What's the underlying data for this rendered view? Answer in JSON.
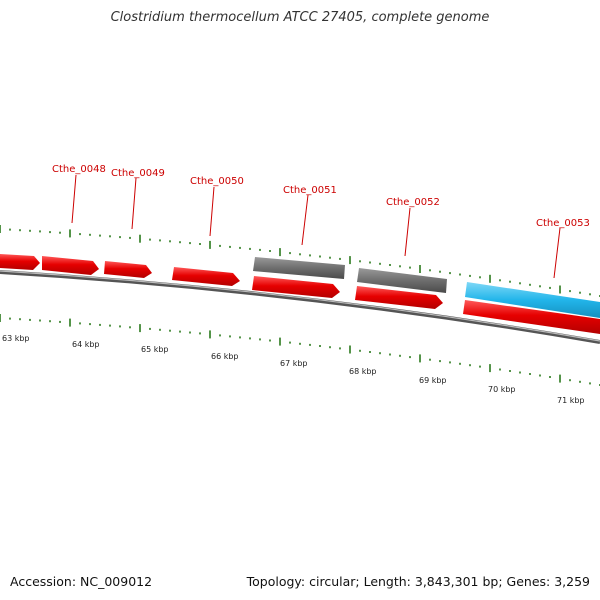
{
  "title": "Clostridium thermocellum ATCC 27405, complete genome",
  "accession": "Accession: NC_009012",
  "summary": "Topology: circular; Length: 3,843,301 bp; Genes: 3,259",
  "colors": {
    "forward_gene": "#e60000",
    "pseudo_gene": "#6e6e6e",
    "rna_gene": "#22b5ea",
    "label": "#cc0000",
    "tick": "#2a7a1c",
    "backbone": "#7a7a7a"
  },
  "gene_labels": [
    {
      "name": "Cthe_0048"
    },
    {
      "name": "Cthe_0049"
    },
    {
      "name": "Cthe_0050"
    },
    {
      "name": "Cthe_0051"
    },
    {
      "name": "Cthe_0052"
    },
    {
      "name": "Cthe_0053"
    }
  ],
  "scale_labels": [
    "63 kbp",
    "64 kbp",
    "65 kbp",
    "66 kbp",
    "67 kbp",
    "68 kbp",
    "69 kbp",
    "70 kbp",
    "71 kbp"
  ]
}
